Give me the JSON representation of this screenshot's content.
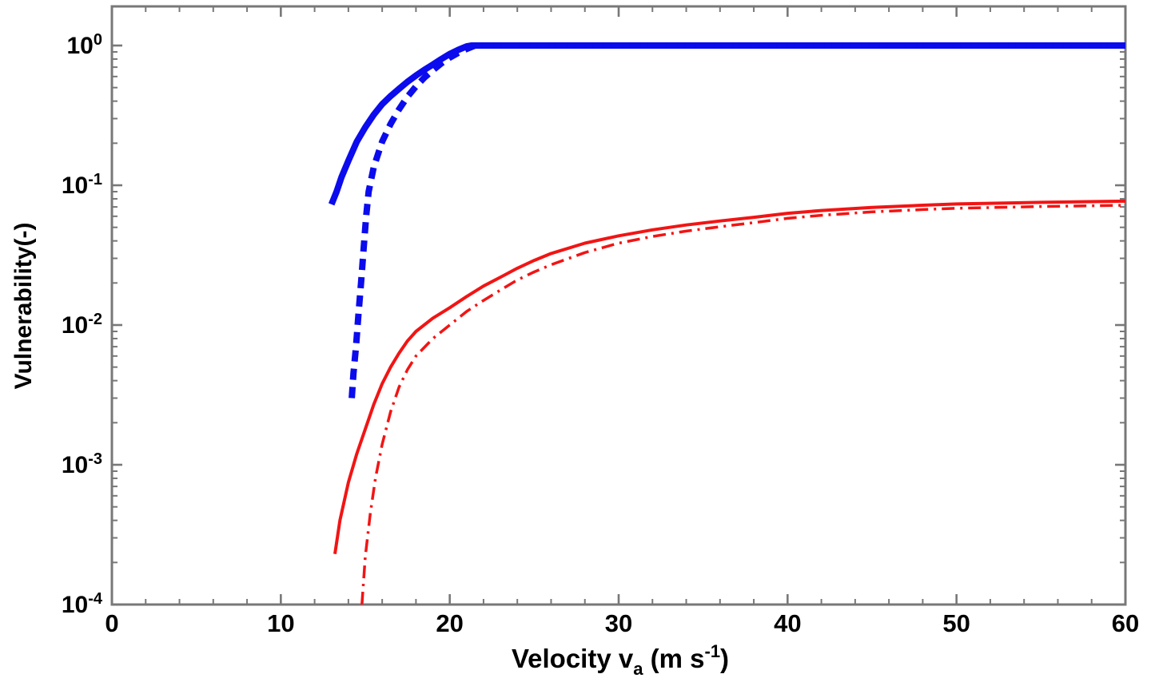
{
  "chart_data": {
    "type": "line",
    "title": "",
    "xlabel": "Velocity v_a (m s^-1)",
    "xlabel_parts": {
      "prefix": "Velocity v",
      "sub": "a",
      "mid": " (m s",
      "sup": "-1",
      "suffix": ")"
    },
    "ylabel": "Vulnerability(-)",
    "x_axis": {
      "min": 0,
      "max": 60,
      "major_ticks": [
        0,
        10,
        20,
        30,
        40,
        50,
        60
      ],
      "tick_labels": [
        "0",
        "10",
        "20",
        "30",
        "40",
        "50",
        "60"
      ],
      "minor_tick_step": 2
    },
    "y_axis": {
      "scale": "log",
      "min": 0.0001,
      "max": 2,
      "decade_exponents": [
        0,
        -1,
        -2,
        -3,
        -4
      ],
      "tick_label_base": "10"
    },
    "grid": false,
    "legend": false,
    "colors": {
      "blue": "#0b0bee",
      "red": "#f21414",
      "axis": "#787878",
      "text": "#000000",
      "background": "#ffffff"
    },
    "series": [
      {
        "name": "blue-thick-solid",
        "color": "#0b0bee",
        "style": "solid",
        "width": 8,
        "points": [
          [
            13.0,
            0.073
          ],
          [
            13.3,
            0.09
          ],
          [
            13.6,
            0.115
          ],
          [
            14,
            0.15
          ],
          [
            14.5,
            0.205
          ],
          [
            15,
            0.26
          ],
          [
            15.5,
            0.32
          ],
          [
            16,
            0.38
          ],
          [
            16.5,
            0.435
          ],
          [
            17,
            0.49
          ],
          [
            17.5,
            0.55
          ],
          [
            18,
            0.61
          ],
          [
            18.5,
            0.67
          ],
          [
            19,
            0.73
          ],
          [
            19.5,
            0.8
          ],
          [
            20,
            0.87
          ],
          [
            20.5,
            0.93
          ],
          [
            21,
            0.985
          ],
          [
            21.3,
            1.0
          ],
          [
            60,
            1.0
          ]
        ]
      },
      {
        "name": "blue-thick-dashed",
        "color": "#0b0bee",
        "style": "dashed",
        "width": 8,
        "dash": "14 9",
        "points": [
          [
            14.2,
            0.003
          ],
          [
            14.3,
            0.0045
          ],
          [
            14.45,
            0.007
          ],
          [
            14.6,
            0.012
          ],
          [
            14.75,
            0.02
          ],
          [
            14.9,
            0.035
          ],
          [
            15.05,
            0.06
          ],
          [
            15.2,
            0.09
          ],
          [
            15.5,
            0.135
          ],
          [
            16,
            0.205
          ],
          [
            16.5,
            0.275
          ],
          [
            17,
            0.35
          ],
          [
            17.5,
            0.43
          ],
          [
            18,
            0.51
          ],
          [
            18.5,
            0.59
          ],
          [
            19,
            0.665
          ],
          [
            19.5,
            0.745
          ],
          [
            20,
            0.82
          ],
          [
            20.5,
            0.885
          ],
          [
            21,
            0.945
          ],
          [
            21.5,
            1.0
          ],
          [
            60,
            1.0
          ]
        ]
      },
      {
        "name": "red-thin-solid",
        "color": "#f21414",
        "style": "solid",
        "width": 4,
        "points": [
          [
            13.2,
            0.00023
          ],
          [
            13.5,
            0.0004
          ],
          [
            14,
            0.00075
          ],
          [
            14.5,
            0.0012
          ],
          [
            15,
            0.0018
          ],
          [
            15.5,
            0.0027
          ],
          [
            16,
            0.0038
          ],
          [
            16.5,
            0.005
          ],
          [
            17,
            0.0063
          ],
          [
            17.5,
            0.0077
          ],
          [
            18,
            0.009
          ],
          [
            19,
            0.0112
          ],
          [
            20,
            0.0133
          ],
          [
            21,
            0.016
          ],
          [
            22,
            0.019
          ],
          [
            23,
            0.022
          ],
          [
            24,
            0.0255
          ],
          [
            25,
            0.029
          ],
          [
            26,
            0.0325
          ],
          [
            28,
            0.0385
          ],
          [
            30,
            0.0435
          ],
          [
            32,
            0.048
          ],
          [
            34,
            0.052
          ],
          [
            36,
            0.0555
          ],
          [
            38,
            0.059
          ],
          [
            40,
            0.063
          ],
          [
            42,
            0.066
          ],
          [
            45,
            0.0695
          ],
          [
            48,
            0.072
          ],
          [
            50,
            0.0735
          ],
          [
            55,
            0.0755
          ],
          [
            60,
            0.077
          ]
        ]
      },
      {
        "name": "red-thin-dashdot",
        "color": "#f21414",
        "style": "dashdot",
        "width": 3.5,
        "dash": "16 7 3 7",
        "points": [
          [
            14.8,
            0.0001
          ],
          [
            15,
            0.00022
          ],
          [
            15.3,
            0.00045
          ],
          [
            15.6,
            0.0008
          ],
          [
            16,
            0.0014
          ],
          [
            16.5,
            0.0024
          ],
          [
            17,
            0.0036
          ],
          [
            17.5,
            0.0048
          ],
          [
            18,
            0.006
          ],
          [
            19,
            0.008
          ],
          [
            20,
            0.01
          ],
          [
            21,
            0.0125
          ],
          [
            22,
            0.015
          ],
          [
            23,
            0.0178
          ],
          [
            24,
            0.021
          ],
          [
            25,
            0.024
          ],
          [
            26,
            0.027
          ],
          [
            28,
            0.033
          ],
          [
            30,
            0.0385
          ],
          [
            32,
            0.043
          ],
          [
            34,
            0.047
          ],
          [
            36,
            0.0505
          ],
          [
            38,
            0.054
          ],
          [
            40,
            0.058
          ],
          [
            42,
            0.061
          ],
          [
            45,
            0.0645
          ],
          [
            48,
            0.067
          ],
          [
            50,
            0.0685
          ],
          [
            55,
            0.0705
          ],
          [
            60,
            0.072
          ]
        ]
      }
    ]
  }
}
